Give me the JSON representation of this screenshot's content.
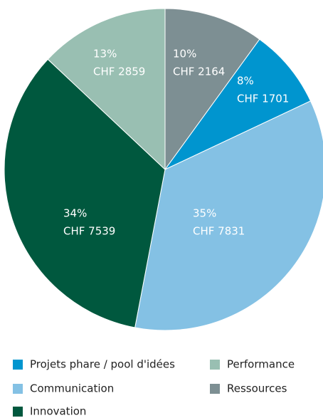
{
  "chart_data": {
    "type": "pie",
    "categories": [
      "Ressources",
      "Projets phare / pool d'idées",
      "Communication",
      "Innovation",
      "Performance"
    ],
    "values": [
      10,
      8,
      35,
      34,
      13
    ],
    "value_labels": [
      "10%",
      "8%",
      "35%",
      "34%",
      "13%"
    ],
    "amounts": [
      2164,
      1701,
      7831,
      7539,
      2859
    ],
    "amount_labels": [
      "CHF 2164",
      "CHF 1701",
      "CHF 7831",
      "CHF 7539",
      "CHF 2859"
    ],
    "colors": [
      "#7d8f93",
      "#0095cf",
      "#84c1e4",
      "#00583e",
      "#99bfb2"
    ]
  }
}
